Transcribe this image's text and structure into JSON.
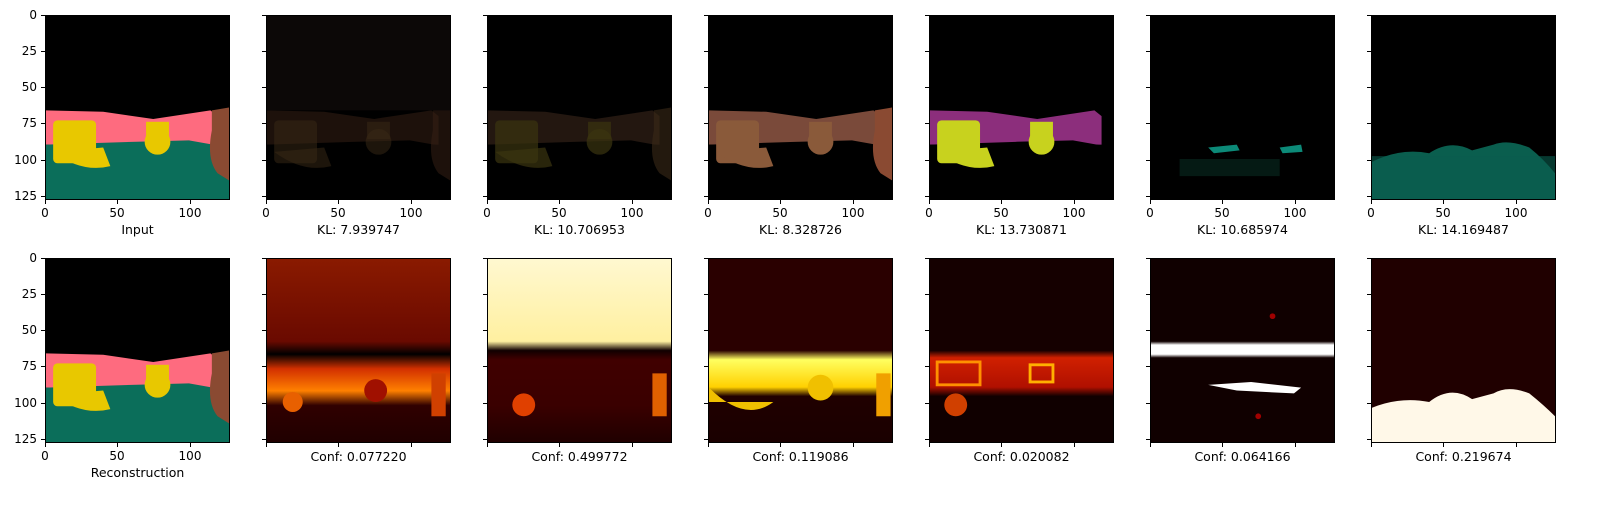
{
  "figure": {
    "top_row": [
      {
        "caption": "Input",
        "kind": "input"
      },
      {
        "caption": "KL: 7.939747",
        "kind": "latent-dim-brown"
      },
      {
        "caption": "KL: 10.706953",
        "kind": "latent-dim-olive"
      },
      {
        "caption": "KL: 8.328726",
        "kind": "latent-brown"
      },
      {
        "caption": "KL: 13.730871",
        "kind": "latent-purple-yellow"
      },
      {
        "caption": "KL: 10.685974",
        "kind": "latent-teal-sparse"
      },
      {
        "caption": "KL: 14.169487",
        "kind": "latent-teal-floor"
      }
    ],
    "bottom_row": [
      {
        "caption": "Reconstruction",
        "kind": "reconstruction"
      },
      {
        "caption": "Conf: 0.077220",
        "kind": "heat-1"
      },
      {
        "caption": "Conf: 0.499772",
        "kind": "heat-2"
      },
      {
        "caption": "Conf: 0.119086",
        "kind": "heat-3"
      },
      {
        "caption": "Conf: 0.020082",
        "kind": "heat-4"
      },
      {
        "caption": "Conf: 0.064166",
        "kind": "heat-5"
      },
      {
        "caption": "Conf: 0.219674",
        "kind": "heat-6"
      }
    ],
    "axis": {
      "y_ticks": [
        "0",
        "25",
        "50",
        "75",
        "100",
        "125"
      ],
      "x_ticks": [
        "0",
        "50",
        "100"
      ]
    },
    "colors": {
      "wall_pink": "#fe6b7f",
      "floor_teal": "#0b6e5a",
      "object_yellow": "#e8c800",
      "right_brown": "#8a4a32"
    }
  }
}
